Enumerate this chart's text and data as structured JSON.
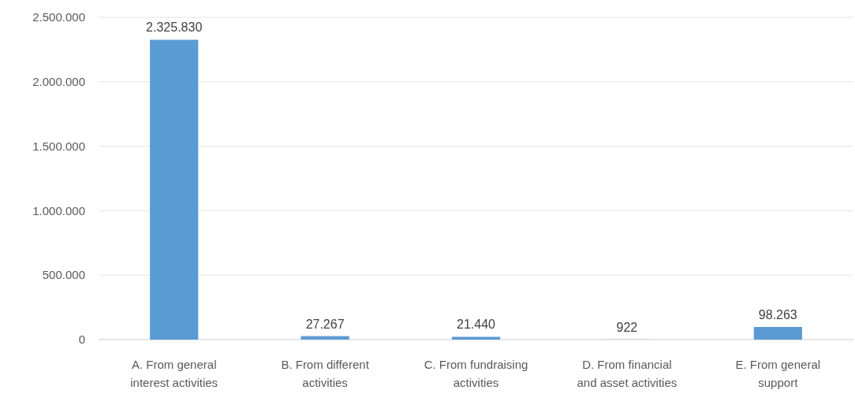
{
  "chart_data": {
    "type": "bar",
    "categories": [
      "A. From general interest activities",
      "B. From different activities",
      "C. From fundraising activities",
      "D. From financial and asset activities",
      "E. From general support"
    ],
    "values": [
      2325830,
      27267,
      21440,
      922,
      98263
    ],
    "value_labels": [
      "2.325.830",
      "27.267",
      "21.440",
      "922",
      "98.263"
    ],
    "color": "#5b9bd5",
    "ylim": [
      0,
      2500000
    ],
    "yticks": [
      0,
      {
        "value": 500000,
        "label": "500.000"
      },
      {
        "value": 1000000,
        "label": "1.000.000"
      },
      {
        "value": 1500000,
        "label": "1.500.000"
      },
      {
        "value": 2000000,
        "label": "2.000.000"
      },
      {
        "value": 2500000,
        "label": "2.500.000"
      }
    ],
    "grid": true
  }
}
